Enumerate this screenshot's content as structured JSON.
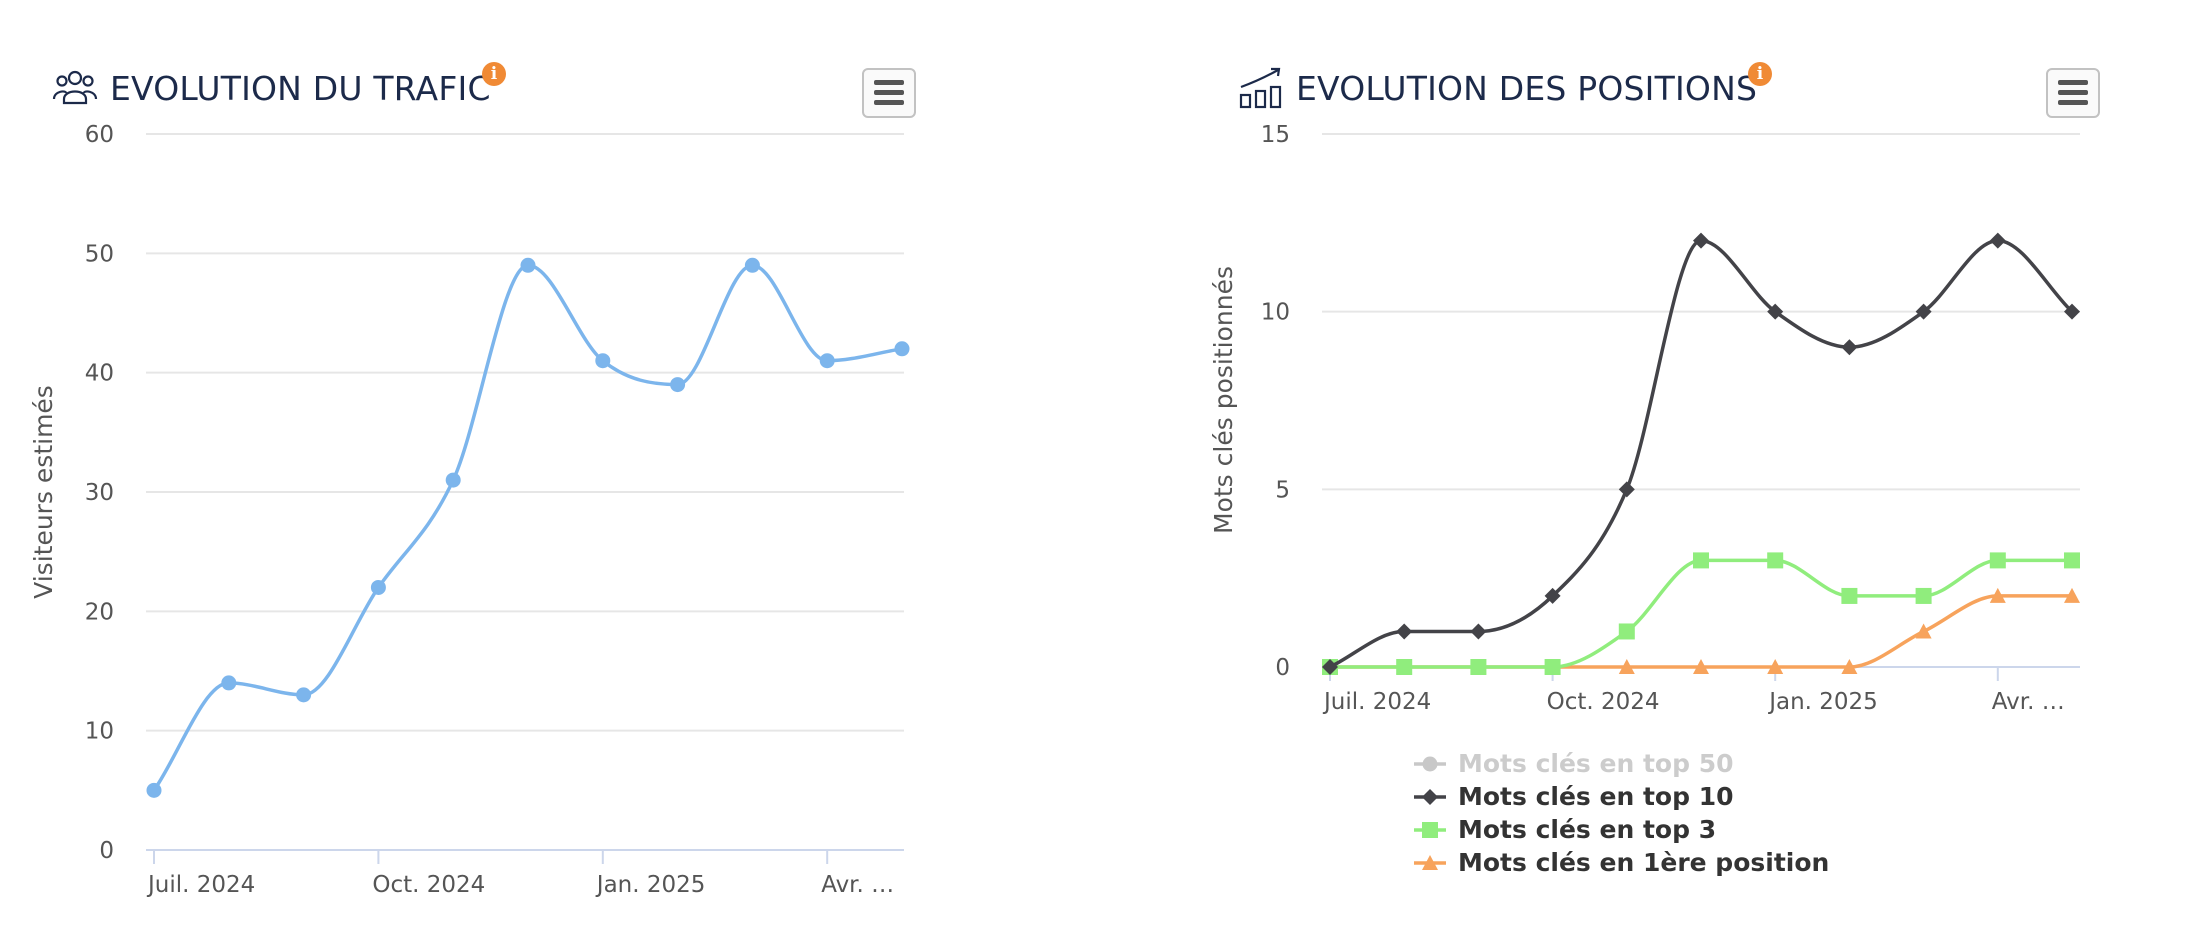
{
  "charts": {
    "traffic": {
      "title": "EVOLUTION DU TRAFIC",
      "info_label": "i",
      "icon": "users-icon",
      "menu_icon": "hamburger-icon"
    },
    "positions": {
      "title": "EVOLUTION DES POSITIONS",
      "info_label": "i",
      "icon": "bar-chart-trend-icon",
      "menu_icon": "hamburger-icon"
    }
  },
  "colors": {
    "traffic_line": "#7cb5ec",
    "top50": "#c8c8c8",
    "top10": "#434348",
    "top3": "#90ed7d",
    "first": "#f7a35c",
    "grid": "#e6e6e6",
    "axis_text": "#555555"
  },
  "chart_data": [
    {
      "type": "line",
      "title": "EVOLUTION DU TRAFIC",
      "xlabel": "",
      "ylabel": "Visiteurs estimés",
      "ylim": [
        0,
        60
      ],
      "yticks": [
        0,
        10,
        20,
        30,
        40,
        50,
        60
      ],
      "x_tick_labels": [
        "Juil. 2024",
        "Oct. 2024",
        "Jan. 2025",
        "Avr. …"
      ],
      "x_tick_indices": [
        0,
        3,
        6,
        9
      ],
      "series": [
        {
          "name": "Visiteurs estimés",
          "values": [
            5,
            14,
            13,
            22,
            31,
            49,
            41,
            39,
            49,
            41,
            42
          ]
        }
      ]
    },
    {
      "type": "line",
      "title": "EVOLUTION DES POSITIONS",
      "xlabel": "",
      "ylabel": "Mots clés positionnés",
      "ylim": [
        0,
        15
      ],
      "yticks": [
        0,
        5,
        10,
        15
      ],
      "x_tick_labels": [
        "Juil. 2024",
        "Oct. 2024",
        "Jan. 2025",
        "Avr. …"
      ],
      "x_tick_indices": [
        0,
        3,
        6,
        9
      ],
      "legend_position": "bottom",
      "series": [
        {
          "name": "Mots clés en top 50",
          "hidden": true,
          "marker": "circle",
          "values": []
        },
        {
          "name": "Mots clés en top 10",
          "marker": "diamond",
          "values": [
            0,
            1,
            1,
            2,
            5,
            12,
            10,
            9,
            10,
            12,
            10
          ]
        },
        {
          "name": "Mots clés en top 3",
          "marker": "square",
          "values": [
            0,
            0,
            0,
            0,
            1,
            3,
            3,
            2,
            2,
            3,
            3
          ]
        },
        {
          "name": "Mots clés en 1ère position",
          "marker": "triangle",
          "values": [
            0,
            0,
            0,
            0,
            0,
            0,
            0,
            0,
            1,
            2,
            2
          ]
        }
      ]
    }
  ]
}
